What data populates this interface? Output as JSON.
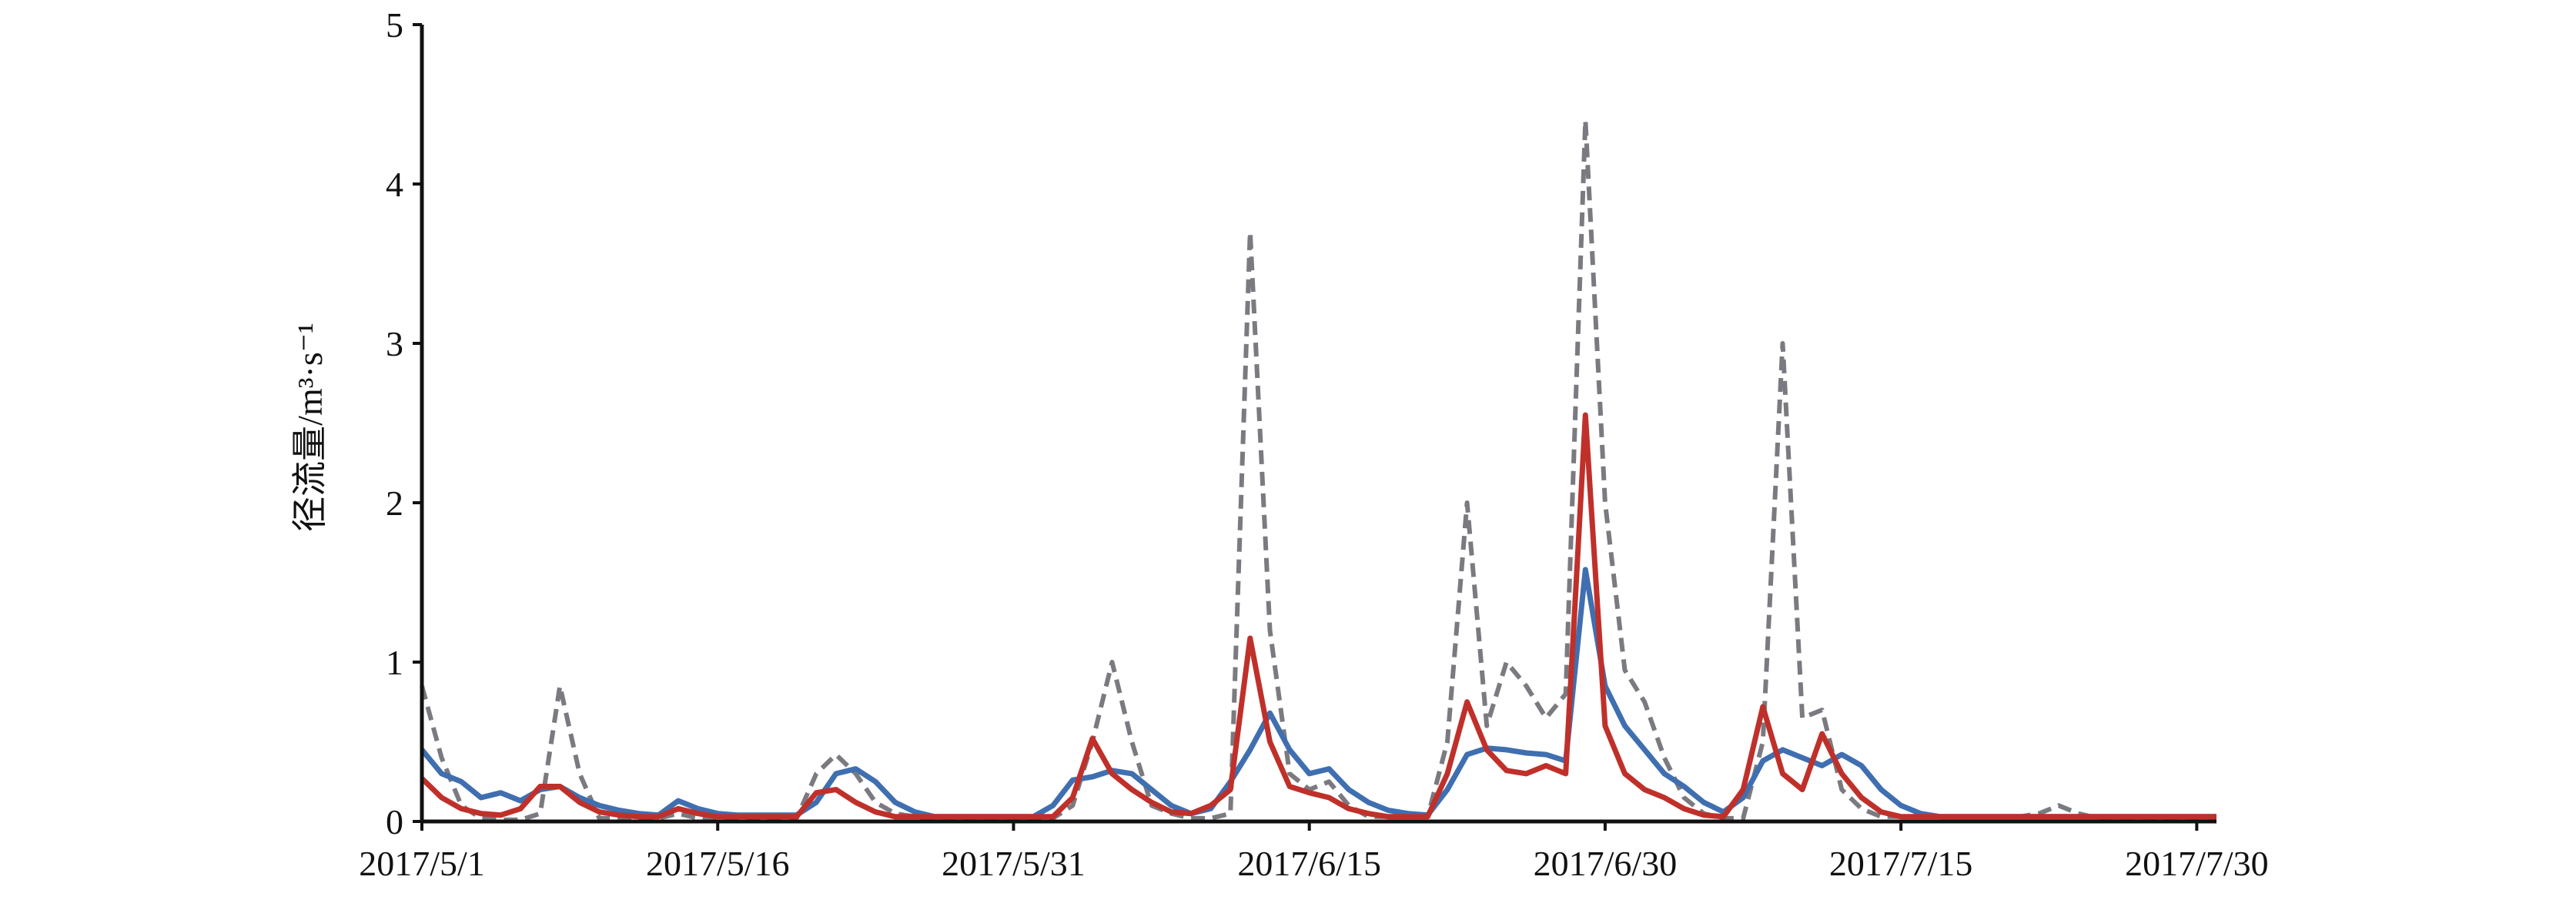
{
  "chart_data": {
    "type": "line",
    "y_label": "径流量/m³·s⁻¹",
    "x": [
      "2017/5/1",
      "2017/5/2",
      "2017/5/3",
      "2017/5/4",
      "2017/5/5",
      "2017/5/6",
      "2017/5/7",
      "2017/5/8",
      "2017/5/9",
      "2017/5/10",
      "2017/5/11",
      "2017/5/12",
      "2017/5/13",
      "2017/5/14",
      "2017/5/15",
      "2017/5/16",
      "2017/5/17",
      "2017/5/18",
      "2017/5/19",
      "2017/5/20",
      "2017/5/21",
      "2017/5/22",
      "2017/5/23",
      "2017/5/24",
      "2017/5/25",
      "2017/5/26",
      "2017/5/27",
      "2017/5/28",
      "2017/5/29",
      "2017/5/30",
      "2017/5/31",
      "2017/6/1",
      "2017/6/2",
      "2017/6/3",
      "2017/6/4",
      "2017/6/5",
      "2017/6/6",
      "2017/6/7",
      "2017/6/8",
      "2017/6/9",
      "2017/6/10",
      "2017/6/11",
      "2017/6/12",
      "2017/6/13",
      "2017/6/14",
      "2017/6/15",
      "2017/6/16",
      "2017/6/17",
      "2017/6/18",
      "2017/6/19",
      "2017/6/20",
      "2017/6/21",
      "2017/6/22",
      "2017/6/23",
      "2017/6/24",
      "2017/6/25",
      "2017/6/26",
      "2017/6/27",
      "2017/6/28",
      "2017/6/29",
      "2017/6/30",
      "2017/7/1",
      "2017/7/2",
      "2017/7/3",
      "2017/7/4",
      "2017/7/5",
      "2017/7/6",
      "2017/7/7",
      "2017/7/8",
      "2017/7/9",
      "2017/7/10",
      "2017/7/11",
      "2017/7/12",
      "2017/7/13",
      "2017/7/14",
      "2017/7/15",
      "2017/7/16",
      "2017/7/17",
      "2017/7/18",
      "2017/7/19",
      "2017/7/20",
      "2017/7/21",
      "2017/7/22",
      "2017/7/23",
      "2017/7/24",
      "2017/7/25",
      "2017/7/26",
      "2017/7/27",
      "2017/7/28",
      "2017/7/29",
      "2017/7/30",
      "2017/7/31"
    ],
    "series": [
      {
        "color": "#7a7a80",
        "dashed": true,
        "values": [
          0.85,
          0.4,
          0.1,
          0.02,
          0.01,
          0.01,
          0.05,
          0.85,
          0.3,
          0.02,
          0.02,
          0.02,
          0.02,
          0.05,
          0.02,
          0.02,
          0.02,
          0.02,
          0.02,
          0.02,
          0.3,
          0.42,
          0.3,
          0.12,
          0.05,
          0.03,
          0.02,
          0.02,
          0.02,
          0.02,
          0.02,
          0.02,
          0.02,
          0.1,
          0.5,
          1.0,
          0.5,
          0.1,
          0.05,
          0.02,
          0.02,
          0.05,
          3.7,
          1.2,
          0.3,
          0.2,
          0.25,
          0.1,
          0.03,
          0.03,
          0.03,
          0.03,
          0.5,
          2.0,
          0.6,
          1.0,
          0.85,
          0.65,
          0.8,
          4.4,
          2.0,
          0.95,
          0.75,
          0.4,
          0.15,
          0.05,
          0.02,
          0.02,
          0.5,
          3.0,
          0.65,
          0.7,
          0.2,
          0.08,
          0.03,
          0.03,
          0.03,
          0.03,
          0.03,
          0.03,
          0.03,
          0.03,
          0.05,
          0.1,
          0.05,
          0.02,
          0.02,
          0.02,
          0.02,
          0.02,
          0.02,
          0.02
        ]
      },
      {
        "color": "#3f6fb0",
        "dashed": false,
        "values": [
          0.45,
          0.3,
          0.25,
          0.15,
          0.18,
          0.13,
          0.2,
          0.22,
          0.15,
          0.1,
          0.07,
          0.05,
          0.04,
          0.13,
          0.08,
          0.05,
          0.04,
          0.04,
          0.04,
          0.04,
          0.12,
          0.3,
          0.33,
          0.25,
          0.12,
          0.06,
          0.03,
          0.03,
          0.03,
          0.03,
          0.03,
          0.03,
          0.1,
          0.26,
          0.28,
          0.32,
          0.3,
          0.2,
          0.1,
          0.05,
          0.08,
          0.25,
          0.45,
          0.68,
          0.45,
          0.3,
          0.33,
          0.2,
          0.12,
          0.07,
          0.05,
          0.04,
          0.2,
          0.42,
          0.46,
          0.45,
          0.43,
          0.42,
          0.38,
          1.58,
          0.85,
          0.6,
          0.45,
          0.3,
          0.22,
          0.12,
          0.06,
          0.15,
          0.38,
          0.45,
          0.4,
          0.35,
          0.42,
          0.35,
          0.2,
          0.1,
          0.05,
          0.03,
          0.03,
          0.03,
          0.03,
          0.03,
          0.03,
          0.03,
          0.03,
          0.03,
          0.03,
          0.03,
          0.03,
          0.03,
          0.03,
          0.03
        ]
      },
      {
        "color": "#c0302a",
        "dashed": false,
        "values": [
          0.27,
          0.15,
          0.08,
          0.05,
          0.04,
          0.08,
          0.22,
          0.22,
          0.12,
          0.06,
          0.04,
          0.03,
          0.03,
          0.08,
          0.05,
          0.03,
          0.03,
          0.03,
          0.03,
          0.03,
          0.18,
          0.2,
          0.12,
          0.06,
          0.03,
          0.03,
          0.03,
          0.03,
          0.03,
          0.03,
          0.03,
          0.03,
          0.03,
          0.15,
          0.52,
          0.3,
          0.2,
          0.12,
          0.06,
          0.05,
          0.1,
          0.2,
          1.15,
          0.5,
          0.22,
          0.18,
          0.15,
          0.08,
          0.05,
          0.03,
          0.03,
          0.03,
          0.3,
          0.75,
          0.45,
          0.32,
          0.3,
          0.35,
          0.3,
          2.55,
          0.6,
          0.3,
          0.2,
          0.15,
          0.08,
          0.04,
          0.03,
          0.2,
          0.72,
          0.3,
          0.2,
          0.55,
          0.3,
          0.15,
          0.06,
          0.03,
          0.03,
          0.03,
          0.03,
          0.03,
          0.03,
          0.03,
          0.03,
          0.03,
          0.03,
          0.03,
          0.03,
          0.03,
          0.03,
          0.03,
          0.03,
          0.03
        ]
      }
    ],
    "xlim": [
      "2017/5/1",
      "2017/7/31"
    ],
    "xticks": [
      "2017/5/1",
      "2017/5/16",
      "2017/5/31",
      "2017/6/15",
      "2017/6/30",
      "2017/7/15",
      "2017/7/30"
    ],
    "ylim": [
      0,
      5
    ],
    "yticks": [
      0,
      1,
      2,
      3,
      4,
      5
    ],
    "grid": false
  }
}
